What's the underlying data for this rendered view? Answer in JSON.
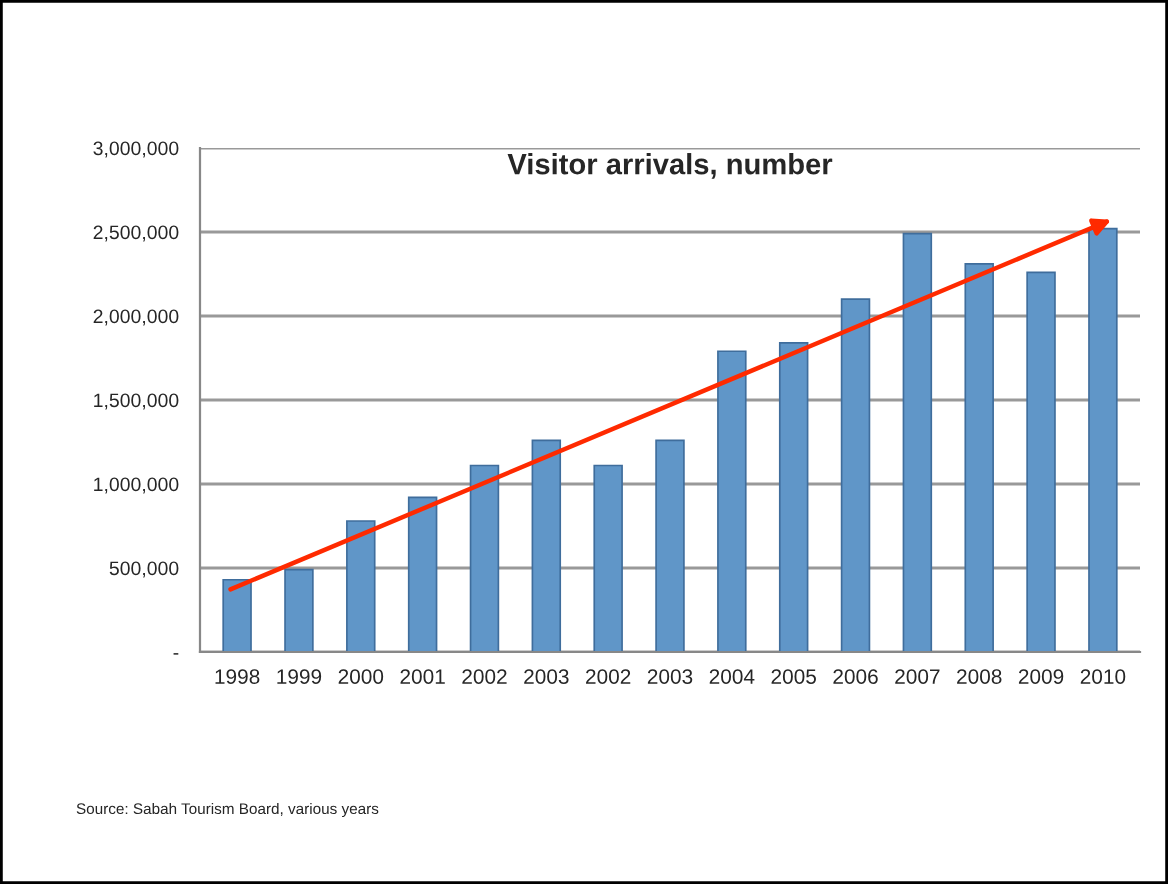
{
  "chart_data": {
    "type": "bar",
    "title": "Visitor arrivals, number",
    "categories": [
      "1998",
      "1999",
      "2000",
      "2001",
      "2002",
      "2003",
      "2002",
      "2003",
      "2004",
      "2005",
      "2006",
      "2007",
      "2008",
      "2009",
      "2010"
    ],
    "series": [
      {
        "color": "#6096c8",
        "values": [
          430000,
          490000,
          780000,
          920000,
          1110000,
          1260000,
          1110000,
          1260000,
          1790000,
          1840000,
          2100000,
          2490000,
          2310000,
          2260000,
          2520000
        ]
      }
    ],
    "ylim": [
      0,
      3000000
    ],
    "yticks": [
      {
        "value": 0,
        "label": "-"
      },
      {
        "value": 500000,
        "label": "500,000"
      },
      {
        "value": 1000000,
        "label": "1,000,000"
      },
      {
        "value": 1500000,
        "label": "1,500,000"
      },
      {
        "value": 2000000,
        "label": "2,000,000"
      },
      {
        "value": 2500000,
        "label": "2,500,000"
      },
      {
        "value": 3000000,
        "label": "3,000,000"
      }
    ],
    "grid": "y",
    "legend": false,
    "annotations": [
      "Source: Sabah Tourism Board, various years"
    ]
  }
}
